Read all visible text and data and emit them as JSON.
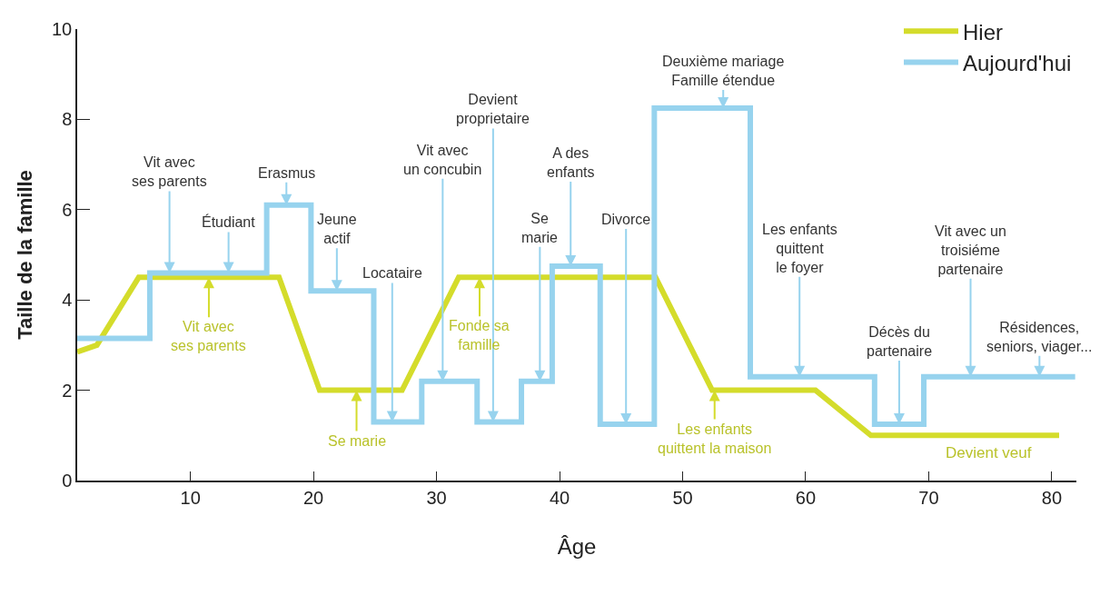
{
  "chart_data": {
    "type": "line",
    "xlabel": "Âge",
    "ylabel": "Taille de la famille",
    "xlim": [
      0.8,
      82
    ],
    "xticks": [
      10,
      20,
      30,
      40,
      50,
      60,
      70,
      80
    ],
    "ylim": [
      0,
      10
    ],
    "yticks": [
      0,
      2,
      4,
      6,
      8,
      10
    ],
    "legend": "top right",
    "marker": "none",
    "series": [
      {
        "name": "Hier",
        "color": "#d4dc2b",
        "x": [
          0.8,
          2.4,
          5.8,
          17.2,
          20.5,
          27.2,
          31.8,
          47.8,
          52.4,
          60.8,
          65.3,
          80.6
        ],
        "values": [
          2.85,
          3.0,
          4.5,
          4.5,
          2.0,
          2.0,
          4.5,
          4.5,
          2.0,
          2.0,
          1.0,
          1.0
        ]
      },
      {
        "name": "Aujourd'hui",
        "color": "#97d3ee",
        "x": [
          0.8,
          6.7,
          6.7,
          16.2,
          16.2,
          19.8,
          19.8,
          24.9,
          24.9,
          28.8,
          28.8,
          33.3,
          33.3,
          36.9,
          36.9,
          39.4,
          39.4,
          43.3,
          43.3,
          47.7,
          47.7,
          55.5,
          55.5,
          65.6,
          65.6,
          69.6,
          69.6,
          81.9
        ],
        "values": [
          3.15,
          3.15,
          4.6,
          4.6,
          6.1,
          6.1,
          4.2,
          4.2,
          1.3,
          1.3,
          2.2,
          2.2,
          1.3,
          1.3,
          2.2,
          2.2,
          4.75,
          4.75,
          1.25,
          1.25,
          8.25,
          8.25,
          2.3,
          2.3,
          1.25,
          1.25,
          2.3,
          2.3
        ]
      }
    ],
    "annotations": [
      {
        "text": "Vit avec\nses parents",
        "x": 8.3,
        "y": 4.6
      },
      {
        "text": "Étudiant",
        "x": 13.1,
        "y": 4.6
      },
      {
        "text": "Erasmus",
        "x": 17.8,
        "y": 6.1
      },
      {
        "text": "Jeune\nactif",
        "x": 21.9,
        "y": 4.2
      },
      {
        "text": "Locataire",
        "x": 26.4,
        "y": 1.3
      },
      {
        "text": "Vit avec\nun concubin",
        "x": 30.5,
        "y": 2.2
      },
      {
        "text": "Devient\nproprietaire",
        "x": 34.6,
        "y": 1.3
      },
      {
        "text": "Se\nmarie",
        "x": 38.4,
        "y": 2.2
      },
      {
        "text": "A des\nenfants",
        "x": 40.9,
        "y": 4.75
      },
      {
        "text": "Divorce",
        "x": 45.4,
        "y": 1.25
      },
      {
        "text": "Deuxième mariage\nFamille étendue",
        "x": 53.3,
        "y": 8.25
      },
      {
        "text": "Les enfants\nquittent\nle foyer",
        "x": 59.5,
        "y": 2.3
      },
      {
        "text": "Décès du\npartenaire",
        "x": 67.6,
        "y": 1.25
      },
      {
        "text": "Vit avec un\ntroisiéme\npartenaire",
        "x": 73.4,
        "y": 2.3
      },
      {
        "text": "Résidences,\nseniors, viager...",
        "x": 79.0,
        "y": 2.3
      },
      {
        "text": "Vit avec\nses parents",
        "x": 11.5,
        "y": 4.5
      },
      {
        "text": "Se marie",
        "x": 23.5,
        "y": 2.0
      },
      {
        "text": "Fonde sa\nfamille",
        "x": 33.5,
        "y": 4.5
      },
      {
        "text": "Les enfants\nquittent la maison",
        "x": 52.6,
        "y": 2.0
      },
      {
        "text": "Devient veuf",
        "x": 74.9,
        "y": 1.0
      }
    ]
  }
}
